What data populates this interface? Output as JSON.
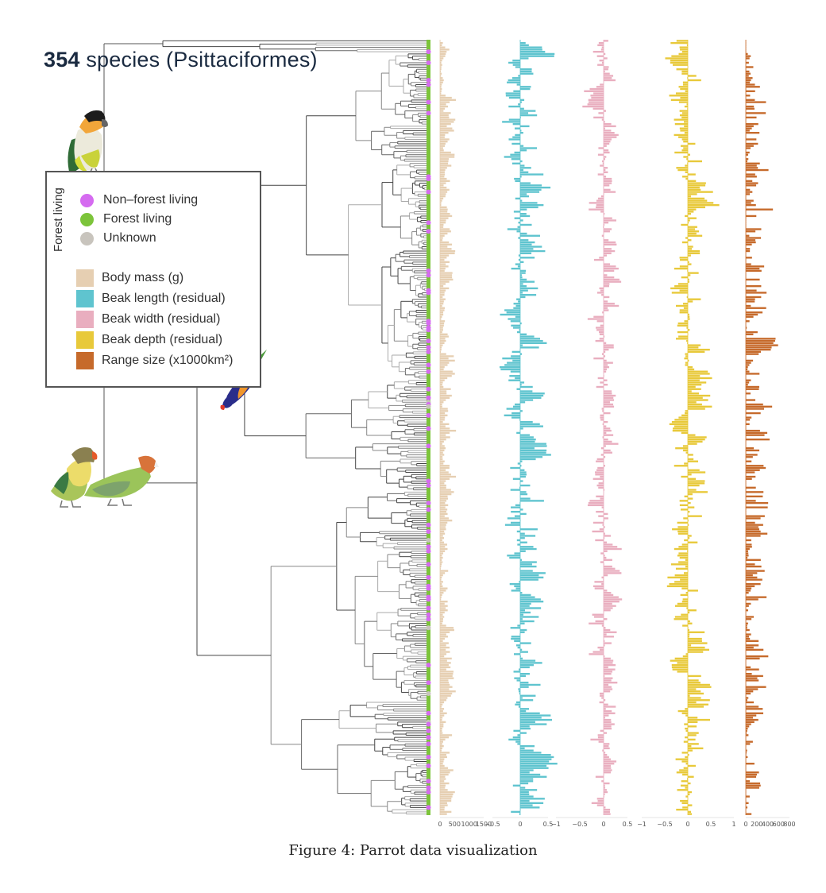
{
  "title": {
    "count": "354",
    "text": "species (Psittaciformes)"
  },
  "caption": "Figure 4: Parrot data visualization",
  "legend": {
    "group_label": "Forest living",
    "habitat": [
      {
        "label": "Non–forest living",
        "color": "#d56bf0"
      },
      {
        "label": "Forest living",
        "color": "#7cc43a"
      },
      {
        "label": "Unknown",
        "color": "#c8c4bd"
      }
    ],
    "traits": [
      {
        "label": "Body mass (g)",
        "color": "#e6cfb2"
      },
      {
        "label": "Beak length (residual)",
        "color": "#5fc4cf"
      },
      {
        "label": "Beak width (residual)",
        "color": "#e9aebf"
      },
      {
        "label": "Beak depth (residual)",
        "color": "#e8c93a"
      },
      {
        "label": "Range size (x1000km²)",
        "color": "#c66a2b"
      }
    ]
  },
  "illustrations": [
    {
      "name": "black-headed-caique-illustration"
    },
    {
      "name": "rainbow-lorikeet-illustration"
    },
    {
      "name": "lovebirds-illustration"
    }
  ],
  "chart_data": {
    "type": "bar",
    "title": "354 species (Psittaciformes)",
    "orientation": "horizontal",
    "n_species": 354,
    "tree": "phylogenetic tree of 354 parrot species, root at left, tips aligned at right",
    "tip_habitat_counts_note": "tips colored by habitat: mostly Forest living (green), scattered Non-forest living (purple), few Unknown (grey)",
    "panels": [
      {
        "name": "Body mass (g)",
        "color": "#e6cfb2",
        "xlim": [
          0,
          1500
        ],
        "ticks": [
          0,
          500,
          1000,
          1500
        ],
        "tick_labels": [
          "0",
          "500",
          "1000",
          "1500"
        ],
        "baseline": 0,
        "range_observed": [
          0,
          1500
        ]
      },
      {
        "name": "Beak length (residual)",
        "color": "#5fc4cf",
        "xlim": [
          -0.5,
          0.5
        ],
        "ticks": [
          -0.5,
          0,
          0.5
        ],
        "tick_labels": [
          "−0.5",
          "0",
          "0.5"
        ],
        "baseline": 0,
        "range_observed": [
          -0.5,
          0.75
        ]
      },
      {
        "name": "Beak width (residual)",
        "color": "#e9aebf",
        "xlim": [
          -1,
          0.5
        ],
        "ticks": [
          -1,
          -0.5,
          0,
          0.5
        ],
        "tick_labels": [
          "−1",
          "−0.5",
          "0",
          "0.5"
        ],
        "baseline": 0,
        "range_observed": [
          -0.6,
          0.45
        ]
      },
      {
        "name": "Beak depth (residual)",
        "color": "#e8c93a",
        "xlim": [
          -1,
          1
        ],
        "ticks": [
          -1,
          -0.5,
          0,
          0.5,
          1
        ],
        "tick_labels": [
          "−1",
          "−0.5",
          "0",
          "0.5",
          "1"
        ],
        "baseline": 0,
        "range_observed": [
          -0.6,
          0.85
        ]
      },
      {
        "name": "Range size (x1000km²)",
        "color": "#c66a2b",
        "xlim": [
          0,
          800
        ],
        "ticks": [
          0,
          200,
          400,
          600,
          800
        ],
        "tick_labels": [
          "0",
          "200",
          "400",
          "600",
          "800"
        ],
        "baseline": 0,
        "range_observed": [
          0,
          800
        ]
      }
    ],
    "values_note": "per-species values are too dense to read individually; bars are rendered from a deterministic approximation seeded per panel"
  }
}
